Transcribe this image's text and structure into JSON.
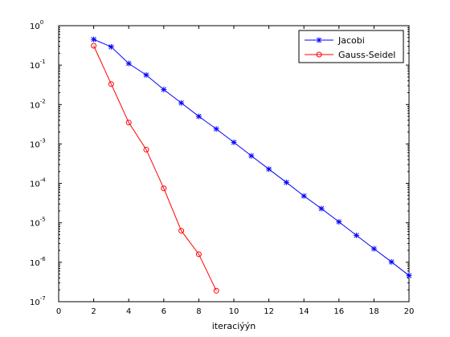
{
  "chart_data": {
    "type": "line",
    "title": "",
    "xlabel": "iteraciýýn",
    "ylabel": "",
    "xlim": [
      0,
      20
    ],
    "ylim": [
      1e-07,
      1
    ],
    "yscale": "log",
    "grid": false,
    "legend_position": "top-right",
    "x_ticks": [
      0,
      2,
      4,
      6,
      8,
      10,
      12,
      14,
      16,
      18,
      20
    ],
    "x_tick_labels": [
      "0",
      "2",
      "4",
      "6",
      "8",
      "10",
      "12",
      "14",
      "16",
      "18",
      "20"
    ],
    "y_ticks": [
      1,
      0.1,
      0.01,
      0.001,
      0.0001,
      1e-05,
      1e-06,
      1e-07
    ],
    "y_tick_labels": [
      {
        "base": "10",
        "exp": "0"
      },
      {
        "base": "10",
        "exp": "-1"
      },
      {
        "base": "10",
        "exp": "-2"
      },
      {
        "base": "10",
        "exp": "-3"
      },
      {
        "base": "10",
        "exp": "-4"
      },
      {
        "base": "10",
        "exp": "-5"
      },
      {
        "base": "10",
        "exp": "-6"
      },
      {
        "base": "10",
        "exp": "-7"
      }
    ],
    "series": [
      {
        "name": "Jacobi",
        "color": "#0000ff",
        "marker": "asterisk",
        "x": [
          2,
          3,
          4,
          5,
          6,
          7,
          8,
          9,
          10,
          11,
          12,
          13,
          14,
          15,
          16,
          17,
          18,
          19,
          20
        ],
        "y": [
          0.45,
          0.29,
          0.11,
          0.056,
          0.024,
          0.011,
          0.005,
          0.0024,
          0.0011,
          0.0005,
          0.00023,
          0.000106,
          4.8e-05,
          2.3e-05,
          1.06e-05,
          4.8e-06,
          2.2e-06,
          1.02e-06,
          4.6e-07
        ]
      },
      {
        "name": "Gauss-Seidel",
        "color": "#ff0000",
        "marker": "circle",
        "x": [
          2,
          3,
          4,
          5,
          6,
          7,
          8,
          9
        ],
        "y": [
          0.31,
          0.033,
          0.0035,
          0.00072,
          7.5e-05,
          6.3e-06,
          1.6e-06,
          1.9e-07
        ]
      }
    ]
  }
}
